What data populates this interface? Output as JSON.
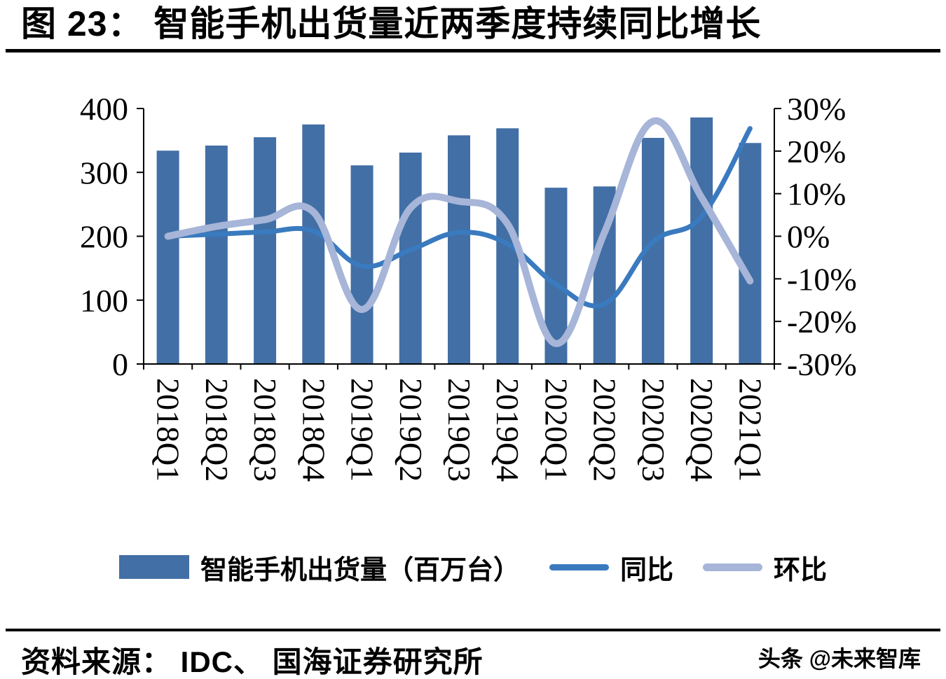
{
  "title": "图 23：  智能手机出货量近两季度持续同比增长",
  "footer": {
    "source": "资料来源： IDC、 国海证券研究所",
    "watermark": "头条 @未来智库"
  },
  "colors": {
    "bar": "#426fa5",
    "yoy_line": "#3a7abf",
    "qoq_line": "#a6b5d8",
    "axis": "#000000"
  },
  "chart_data": {
    "type": "bar",
    "subtype": "combo-bar-line",
    "title": "图 23：  智能手机出货量近两季度持续同比增长",
    "categories": [
      "2018Q1",
      "2018Q2",
      "2018Q3",
      "2018Q4",
      "2019Q1",
      "2019Q2",
      "2019Q3",
      "2019Q4",
      "2020Q1",
      "2020Q2",
      "2020Q3",
      "2020Q4",
      "2021Q1"
    ],
    "series": [
      {
        "name": "智能手机出货量（百万台）",
        "type": "bar",
        "axis": "left",
        "values": [
          334,
          342,
          355,
          375,
          311,
          331,
          358,
          369,
          276,
          278,
          354,
          386,
          346
        ]
      },
      {
        "name": "同比",
        "type": "line",
        "axis": "right",
        "values": [
          0.0,
          0.5,
          1.0,
          1.2,
          -7.0,
          -3.2,
          0.9,
          -1.8,
          -11.3,
          -15.9,
          -1.3,
          4.6,
          25.3
        ]
      },
      {
        "name": "环比",
        "type": "line",
        "axis": "right",
        "values": [
          0.0,
          2.3,
          3.9,
          5.7,
          -17.2,
          6.6,
          8.2,
          2.9,
          -25.2,
          0.9,
          27.0,
          9.1,
          -10.5
        ]
      }
    ],
    "left_axis": {
      "min": 0,
      "max": 400,
      "ticks": [
        0,
        100,
        200,
        300,
        400
      ]
    },
    "right_axis": {
      "min": -30,
      "max": 30,
      "ticks": [
        -30,
        -20,
        -10,
        0,
        10,
        20,
        30
      ],
      "format": "percent"
    },
    "legend_position": "bottom",
    "grid": false
  }
}
